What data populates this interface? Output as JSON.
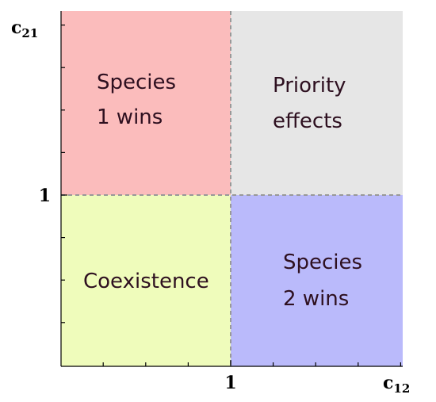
{
  "axes": {
    "y_label": {
      "symbol": "c",
      "subscript": "21"
    },
    "x_label": {
      "symbol": "c",
      "subscript": "12"
    },
    "y_tick": "1",
    "x_tick": "1"
  },
  "quadrants": {
    "top_left": {
      "lines": [
        "Species",
        "1 wins"
      ]
    },
    "top_right": {
      "lines": [
        "Priority",
        "effects"
      ]
    },
    "bottom_left": {
      "lines": [
        "Coexistence"
      ]
    },
    "bottom_right": {
      "lines": [
        "Species",
        "2 wins"
      ]
    }
  }
}
